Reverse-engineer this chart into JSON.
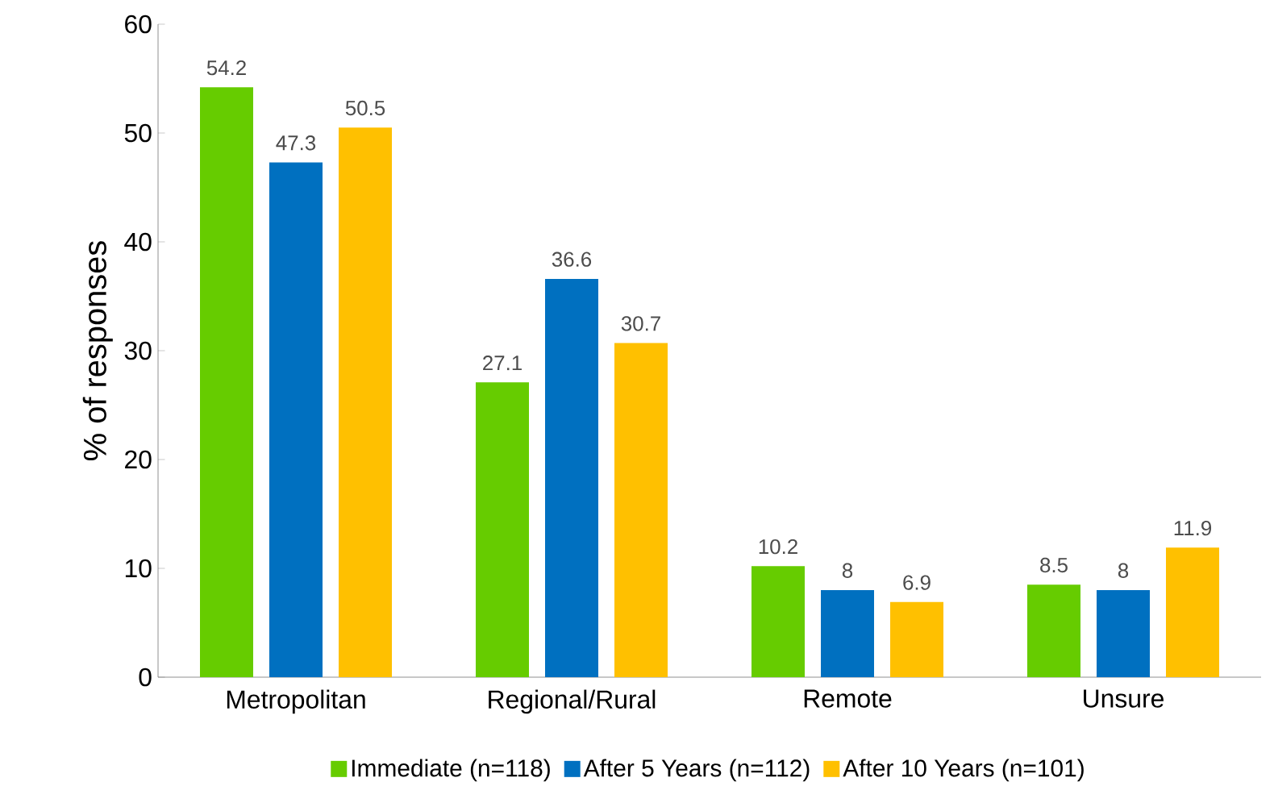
{
  "chart_data": {
    "type": "bar",
    "ylabel": "% of responses",
    "categories": [
      "Metropolitan",
      "Regional/Rural",
      "Remote",
      "Unsure"
    ],
    "series": [
      {
        "name": "Immediate (n=118)",
        "color": "#66cc00",
        "values": [
          54.2,
          27.1,
          10.2,
          8.5
        ]
      },
      {
        "name": "After 5 Years (n=112)",
        "color": "#0070c0",
        "values": [
          47.3,
          36.6,
          8,
          8
        ]
      },
      {
        "name": "After 10 Years (n=101)",
        "color": "#ffc000",
        "values": [
          50.5,
          30.7,
          6.9,
          11.9
        ]
      }
    ],
    "ylim": [
      0,
      60
    ],
    "yticks": [
      0,
      10,
      20,
      30,
      40,
      50,
      60
    ],
    "data_labels": true,
    "legend": "bottom",
    "grid": false
  }
}
